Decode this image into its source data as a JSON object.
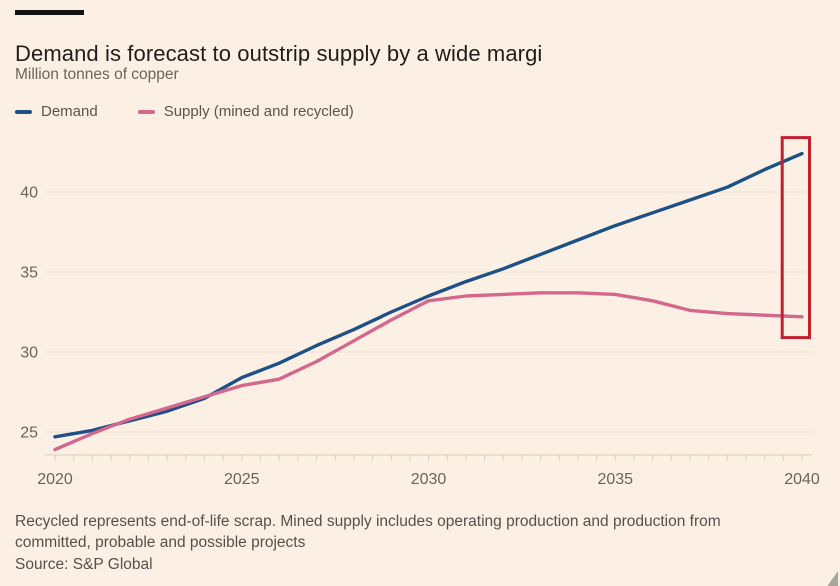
{
  "header": {
    "title": "Demand is forecast to outstrip supply by a wide margi",
    "subtitle": "Million tonnes of copper"
  },
  "legend": [
    {
      "label": "Demand",
      "color": "#1d5086",
      "icon": "line-swatch"
    },
    {
      "label": "Supply (mined and recycled)",
      "color": "#d4688c",
      "icon": "line-swatch"
    }
  ],
  "chart_data": {
    "type": "line",
    "title": "Demand is forecast to outstrip supply by a wide margi",
    "ylabel": "Million tonnes of copper",
    "xlabel": "",
    "x": [
      2020,
      2021,
      2022,
      2023,
      2024,
      2025,
      2026,
      2027,
      2028,
      2029,
      2030,
      2031,
      2032,
      2033,
      2034,
      2035,
      2036,
      2037,
      2038,
      2039,
      2040
    ],
    "series": [
      {
        "name": "Demand",
        "color": "#1d5086",
        "values": [
          24.7,
          25.1,
          25.7,
          26.3,
          27.1,
          28.4,
          29.3,
          30.4,
          31.4,
          32.5,
          33.5,
          34.4,
          35.2,
          36.1,
          37.0,
          37.9,
          38.7,
          39.5,
          40.3,
          41.4,
          42.4
        ]
      },
      {
        "name": "Supply (mined and recycled)",
        "color": "#d4688c",
        "values": [
          23.9,
          24.9,
          25.8,
          26.5,
          27.2,
          27.9,
          28.3,
          29.4,
          30.7,
          32.0,
          33.2,
          33.5,
          33.6,
          33.7,
          33.7,
          33.6,
          33.2,
          32.6,
          32.4,
          32.3,
          32.2
        ]
      }
    ],
    "xticks": [
      2020,
      2025,
      2030,
      2035,
      2040
    ],
    "yticks": [
      25,
      30,
      35,
      40
    ],
    "xlim": [
      2020,
      2040
    ],
    "ylim": [
      23.4,
      43.6
    ],
    "grid": "faint-horizontal",
    "legend_position": "top-left",
    "highlight_box": {
      "x_start": 2039.47,
      "x_end": 2040.2,
      "y_start": 30.9,
      "y_end": 43.4,
      "color": "#c2202e",
      "meaning": "highlights 2040 demand-supply gap"
    }
  },
  "footer": {
    "note_line1": "Recycled represents end-of-life scrap. Mined supply includes operating production and production from",
    "note_line2": "committed, probable and possible projects",
    "source": "Source: S&P Global"
  },
  "colors": {
    "background": "#fcf0e4",
    "brand_bar": "#141210",
    "title_text": "#221d19",
    "muted_text": "#6c6459",
    "footnote_text": "#57504a",
    "demand_line": "#1d5086",
    "supply_line": "#d4688c",
    "highlight_box": "#c2202e",
    "gridline": "#f0e0cf",
    "axis_line": "#decbb9"
  }
}
